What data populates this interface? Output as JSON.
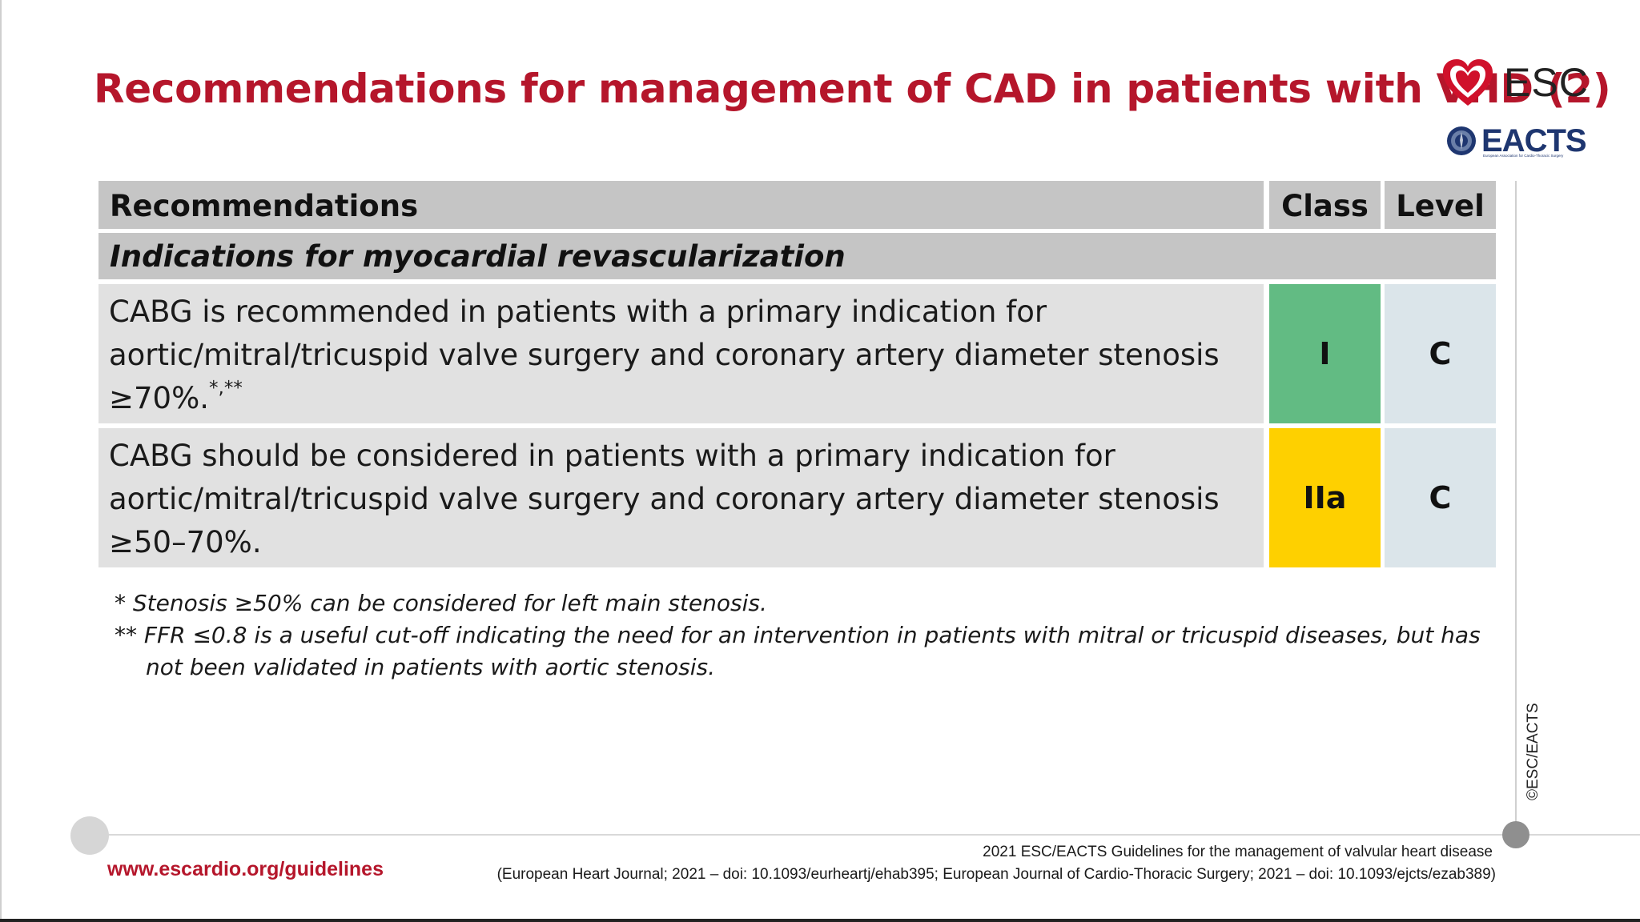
{
  "title": "Recommendations for management of CAD in patients with VHD (2)",
  "logos": {
    "esc": "ESC",
    "eacts": "EACTS",
    "eacts_sub": "European Association for Cardio-Thoracic Surgery"
  },
  "table": {
    "headers": {
      "recommendations": "Recommendations",
      "class": "Class",
      "level": "Level"
    },
    "section": "Indications for myocardial revascularization",
    "rows": [
      {
        "line1": "CABG is recommended in patients with a primary indication for",
        "line2": "aortic/mitral/tricuspid valve surgery and coronary artery diameter stenosis",
        "line3": "≥70%.",
        "sup": "*,**",
        "class": "I",
        "level": "C",
        "class_color": "#62bb83"
      },
      {
        "line1": "CABG should be considered in patients with a primary indication for",
        "line2": "aortic/mitral/tricuspid valve surgery and coronary artery diameter stenosis",
        "line3": "≥50–70%.",
        "class": "IIa",
        "level": "C",
        "class_color": "#fed000"
      }
    ]
  },
  "footnotes": {
    "fn1": "* Stenosis ≥50% can be considered for left main stenosis.",
    "fn2a": "** FFR ≤0.8 is a useful cut-off indicating the need for an intervention in patients with mitral or tricuspid diseases, but has",
    "fn2b": "not been validated in patients with aortic stenosis."
  },
  "copyright": "©ESC/EACTS",
  "footer": {
    "url": "www.escardio.org/guidelines",
    "ref1": "2021 ESC/EACTS Guidelines for the management of valvular heart disease",
    "ref2": "(European Heart Journal; 2021 – doi: 10.1093/eurheartj/ehab395; European Journal of Cardio-Thoracic Surgery; 2021 – doi: 10.1093/ejcts/ezab389)"
  }
}
